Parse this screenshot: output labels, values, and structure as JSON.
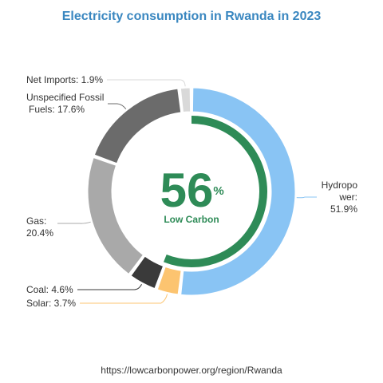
{
  "chart_data": {
    "type": "donut",
    "title": "Electricity consumption in Rwanda in 2023",
    "unit": "%",
    "slices": [
      {
        "name": "Hydropower",
        "value": 51.9,
        "color": "#89c4f4",
        "label_lines": [
          "Hydropo",
          "wer:",
          "51.9%"
        ]
      },
      {
        "name": "Solar",
        "value": 3.7,
        "color": "#fcc470",
        "label_lines": [
          "Solar: 3.7%"
        ]
      },
      {
        "name": "Coal",
        "value": 4.6,
        "color": "#3a3a3a",
        "label_lines": [
          "Coal: 4.6%"
        ]
      },
      {
        "name": "Gas",
        "value": 20.4,
        "color": "#a9a9a9",
        "label_lines": [
          "Gas:",
          "20.4%"
        ]
      },
      {
        "name": "Unspecified Fossil Fuels",
        "value": 17.6,
        "color": "#6b6b6b",
        "label_lines": [
          "Unspecified Fossil",
          "Fuels: 17.6%"
        ]
      },
      {
        "name": "Net Imports",
        "value": 1.9,
        "color": "#d9d9d9",
        "label_lines": [
          "Net Imports: 1.9%"
        ]
      }
    ],
    "center": {
      "value": "56",
      "value_unit": "%",
      "label": "Low Carbon",
      "low_carbon_share": 56,
      "color": "#2e8b57"
    },
    "source": "https://lowcarbonpower.org/region/Rwanda"
  }
}
